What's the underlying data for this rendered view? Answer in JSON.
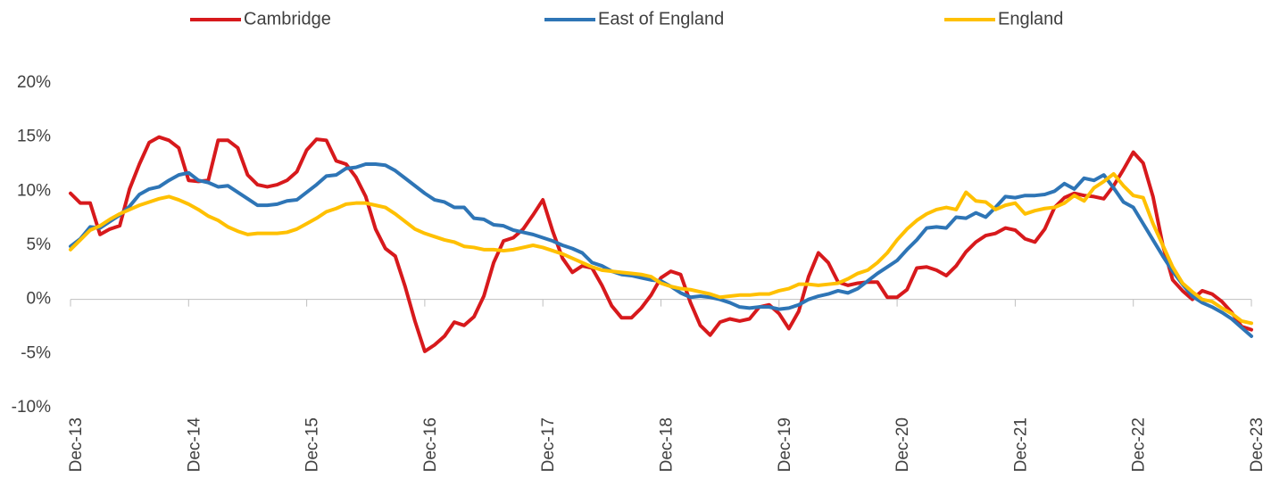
{
  "chart_data": {
    "type": "line",
    "categories": [
      "Dec-13",
      null,
      null,
      null,
      null,
      null,
      null,
      null,
      null,
      null,
      null,
      null,
      "Dec-14",
      null,
      null,
      null,
      null,
      null,
      null,
      null,
      null,
      null,
      null,
      null,
      "Dec-15",
      null,
      null,
      null,
      null,
      null,
      null,
      null,
      null,
      null,
      null,
      null,
      "Dec-16",
      null,
      null,
      null,
      null,
      null,
      null,
      null,
      null,
      null,
      null,
      null,
      "Dec-17",
      null,
      null,
      null,
      null,
      null,
      null,
      null,
      null,
      null,
      null,
      null,
      "Dec-18",
      null,
      null,
      null,
      null,
      null,
      null,
      null,
      null,
      null,
      null,
      null,
      "Dec-19",
      null,
      null,
      null,
      null,
      null,
      null,
      null,
      null,
      null,
      null,
      null,
      "Dec-20",
      null,
      null,
      null,
      null,
      null,
      null,
      null,
      null,
      null,
      null,
      null,
      "Dec-21",
      null,
      null,
      null,
      null,
      null,
      null,
      null,
      null,
      null,
      null,
      null,
      "Dec-22",
      null,
      null,
      null,
      null,
      null,
      null,
      null,
      null,
      null,
      null,
      null,
      "Dec-23"
    ],
    "series": [
      {
        "name": "Cambridge",
        "color": "#d7191c",
        "values": [
          9.8,
          8.9,
          8.9,
          6.0,
          6.5,
          6.8,
          10.2,
          12.5,
          14.5,
          15.0,
          14.7,
          14.0,
          11.0,
          10.9,
          11.0,
          14.7,
          14.7,
          14.0,
          11.5,
          10.6,
          10.4,
          10.6,
          11.0,
          11.8,
          13.8,
          14.8,
          14.7,
          12.8,
          12.5,
          11.3,
          9.5,
          6.5,
          4.7,
          4.0,
          1.2,
          -2.0,
          -4.8,
          -4.2,
          -3.4,
          -2.1,
          -2.4,
          -1.6,
          0.3,
          3.4,
          5.4,
          5.7,
          6.5,
          7.8,
          9.2,
          6.3,
          3.8,
          2.5,
          3.1,
          2.9,
          1.3,
          -0.6,
          -1.7,
          -1.7,
          -0.8,
          0.4,
          2.0,
          2.6,
          2.3,
          -0.3,
          -2.4,
          -3.3,
          -2.1,
          -1.8,
          -2.0,
          -1.8,
          -0.7,
          -0.5,
          -1.3,
          -2.7,
          -1.1,
          2.1,
          4.3,
          3.4,
          1.6,
          1.3,
          1.5,
          1.6,
          1.6,
          0.2,
          0.2,
          0.9,
          2.9,
          3.0,
          2.7,
          2.2,
          3.1,
          4.4,
          5.3,
          5.9,
          6.1,
          6.6,
          6.4,
          5.6,
          5.3,
          6.5,
          8.5,
          9.4,
          9.8,
          9.6,
          9.5,
          9.3,
          10.5,
          12.0,
          13.6,
          12.6,
          9.5,
          5.0,
          1.8,
          0.8,
          0.0,
          0.8,
          0.5,
          -0.2,
          -1.2,
          -2.5,
          -2.8
        ]
      },
      {
        "name": "East of England",
        "color": "#2e75b6",
        "values": [
          4.9,
          5.6,
          6.7,
          6.6,
          7.2,
          7.8,
          8.6,
          9.7,
          10.2,
          10.4,
          11.0,
          11.5,
          11.7,
          11.0,
          10.8,
          10.4,
          10.5,
          9.9,
          9.3,
          8.7,
          8.7,
          8.8,
          9.1,
          9.2,
          9.9,
          10.6,
          11.4,
          11.5,
          12.1,
          12.2,
          12.5,
          12.5,
          12.4,
          11.9,
          11.2,
          10.5,
          9.8,
          9.2,
          9.0,
          8.5,
          8.5,
          7.5,
          7.4,
          6.9,
          6.8,
          6.4,
          6.2,
          6.0,
          5.7,
          5.4,
          5.0,
          4.7,
          4.3,
          3.4,
          3.1,
          2.6,
          2.3,
          2.2,
          2.0,
          1.8,
          1.7,
          1.2,
          0.6,
          0.2,
          0.3,
          0.2,
          0.0,
          -0.3,
          -0.7,
          -0.8,
          -0.7,
          -0.7,
          -0.9,
          -0.8,
          -0.5,
          0.0,
          0.3,
          0.5,
          0.8,
          0.6,
          1.0,
          1.7,
          2.4,
          3.0,
          3.6,
          4.6,
          5.5,
          6.6,
          6.7,
          6.6,
          7.6,
          7.5,
          8.0,
          7.6,
          8.5,
          9.5,
          9.4,
          9.6,
          9.6,
          9.7,
          10.0,
          10.7,
          10.2,
          11.2,
          11.0,
          11.5,
          10.3,
          9.0,
          8.5,
          7.0,
          5.5,
          4.0,
          2.6,
          1.4,
          0.3,
          -0.3,
          -0.7,
          -1.2,
          -1.8,
          -2.6,
          -3.4
        ]
      },
      {
        "name": "England",
        "color": "#ffc000",
        "values": [
          4.6,
          5.5,
          6.4,
          6.8,
          7.4,
          7.9,
          8.3,
          8.7,
          9.0,
          9.3,
          9.5,
          9.2,
          8.8,
          8.3,
          7.7,
          7.3,
          6.7,
          6.3,
          6.0,
          6.1,
          6.1,
          6.1,
          6.2,
          6.5,
          7.0,
          7.5,
          8.1,
          8.4,
          8.8,
          8.9,
          8.9,
          8.7,
          8.5,
          7.9,
          7.2,
          6.5,
          6.1,
          5.8,
          5.5,
          5.3,
          4.9,
          4.8,
          4.6,
          4.6,
          4.5,
          4.6,
          4.8,
          5.0,
          4.8,
          4.5,
          4.2,
          3.8,
          3.4,
          3.0,
          2.7,
          2.6,
          2.5,
          2.4,
          2.3,
          2.1,
          1.5,
          1.2,
          1.0,
          0.9,
          0.7,
          0.5,
          0.2,
          0.3,
          0.4,
          0.4,
          0.5,
          0.5,
          0.8,
          1.0,
          1.4,
          1.4,
          1.3,
          1.4,
          1.5,
          1.9,
          2.4,
          2.7,
          3.4,
          4.3,
          5.5,
          6.5,
          7.3,
          7.9,
          8.3,
          8.5,
          8.3,
          9.9,
          9.1,
          9.0,
          8.3,
          8.7,
          8.9,
          7.9,
          8.2,
          8.4,
          8.5,
          8.9,
          9.6,
          9.1,
          10.3,
          10.9,
          11.6,
          10.5,
          9.6,
          9.4,
          7.0,
          5.0,
          3.0,
          1.5,
          0.7,
          0.0,
          -0.2,
          -0.8,
          -1.3,
          -2.0,
          -2.2
        ]
      }
    ],
    "ylim": [
      -10,
      20
    ],
    "yticks": [
      {
        "value": -10,
        "label": "-10%"
      },
      {
        "value": -5,
        "label": "-5%"
      },
      {
        "value": 0,
        "label": "0%"
      },
      {
        "value": 5,
        "label": "5%"
      },
      {
        "value": 10,
        "label": "10%"
      },
      {
        "value": 15,
        "label": "15%"
      },
      {
        "value": 20,
        "label": "20%"
      }
    ],
    "grid": false,
    "legend": "top"
  }
}
